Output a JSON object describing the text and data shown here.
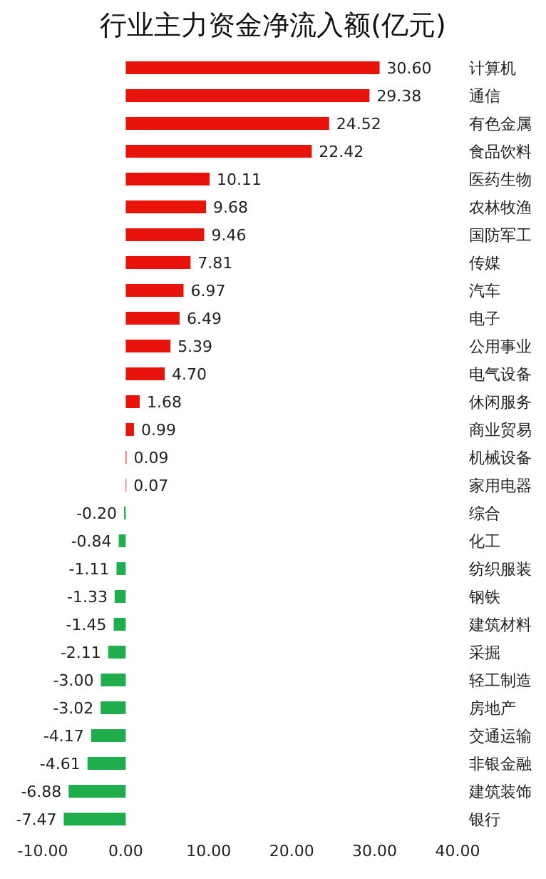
{
  "chart_data": {
    "type": "bar",
    "title": "行业主力资金净流入额(亿元)",
    "orientation": "horizontal",
    "categories": [
      "计算机",
      "通信",
      "有色金属",
      "食品饮料",
      "医药生物",
      "农林牧渔",
      "国防军工",
      "传媒",
      "汽车",
      "电子",
      "公用事业",
      "电气设备",
      "休闲服务",
      "商业贸易",
      "机械设备",
      "家用电器",
      "综合",
      "化工",
      "纺织服装",
      "钢铁",
      "建筑材料",
      "采掘",
      "轻工制造",
      "房地产",
      "交通运输",
      "非银金融",
      "建筑装饰",
      "银行"
    ],
    "values": [
      30.6,
      29.38,
      24.52,
      22.42,
      10.11,
      9.68,
      9.46,
      7.81,
      6.97,
      6.49,
      5.39,
      4.7,
      1.68,
      0.99,
      0.09,
      0.07,
      -0.2,
      -0.84,
      -1.11,
      -1.33,
      -1.45,
      -2.11,
      -3.0,
      -3.02,
      -4.17,
      -4.61,
      -6.88,
      -7.47
    ],
    "value_labels": [
      "30.60",
      "29.38",
      "24.52",
      "22.42",
      "10.11",
      "9.68",
      "9.46",
      "7.81",
      "6.97",
      "6.49",
      "5.39",
      "4.70",
      "1.68",
      "0.99",
      "0.09",
      "0.07",
      "-0.20",
      "-0.84",
      "-1.11",
      "-1.33",
      "-1.45",
      "-2.11",
      "-3.00",
      "-3.02",
      "-4.17",
      "-4.61",
      "-6.88",
      "-7.47"
    ],
    "colors": [
      "#e8140c",
      "#e8140c",
      "#e8140c",
      "#e8140c",
      "#e8140c",
      "#e8140c",
      "#e8140c",
      "#e8140c",
      "#e8140c",
      "#e8140c",
      "#e8140c",
      "#e8140c",
      "#e8140c",
      "#e8140c",
      "#e8140c",
      "#e8140c",
      "#1fae4b",
      "#1fae4b",
      "#1fae4b",
      "#1fae4b",
      "#1fae4b",
      "#1fae4b",
      "#1fae4b",
      "#1fae4b",
      "#1fae4b",
      "#1fae4b",
      "#1fae4b",
      "#1fae4b"
    ],
    "xlim": [
      -10,
      40
    ],
    "xticks": [
      {
        "value": -10,
        "label": "-10.00"
      },
      {
        "value": 0,
        "label": "0.00"
      },
      {
        "value": 10,
        "label": "10.00"
      },
      {
        "value": 20,
        "label": "20.00"
      },
      {
        "value": 30,
        "label": "30.00"
      },
      {
        "value": 40,
        "label": "40.00"
      }
    ]
  }
}
